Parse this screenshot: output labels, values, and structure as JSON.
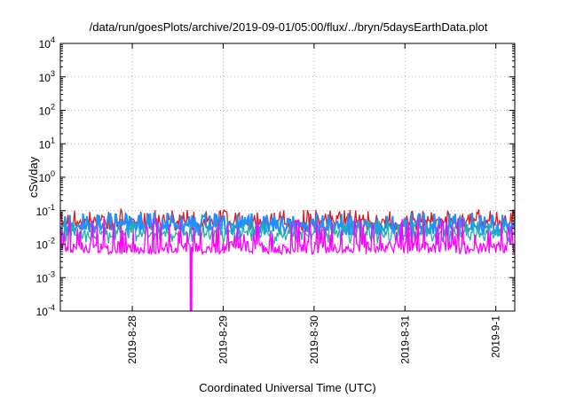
{
  "chart_data": {
    "type": "line",
    "title": "/data/run/goesPlots/archive/2019-09-01/05:00/flux/../bryn/5daysEarthData.plot",
    "xlabel": "Coordinated Universal Time (UTC)",
    "ylabel": "cSv/day",
    "yscale": "log",
    "ylim": [
      0.0001,
      10000
    ],
    "xlim": [
      "2019-08-27 05:00",
      "2019-09-01 05:00"
    ],
    "grid": true,
    "x_ticks": [
      {
        "label": "2019-8-28",
        "at": "2019-08-28 00:00"
      },
      {
        "label": "2019-8-29",
        "at": "2019-08-29 00:00"
      },
      {
        "label": "2019-8-30",
        "at": "2019-08-30 00:00"
      },
      {
        "label": "2019-8-31",
        "at": "2019-08-31 00:00"
      },
      {
        "label": "2019-9-1",
        "at": "2019-09-01 00:00"
      }
    ],
    "y_ticks": [
      {
        "base": "10",
        "exp": "-4",
        "value": 0.0001
      },
      {
        "base": "10",
        "exp": "-3",
        "value": 0.001
      },
      {
        "base": "10",
        "exp": "-2",
        "value": 0.01
      },
      {
        "base": "10",
        "exp": "-1",
        "value": 0.1
      },
      {
        "base": "10",
        "exp": "0",
        "value": 1
      },
      {
        "base": "10",
        "exp": "1",
        "value": 10
      },
      {
        "base": "10",
        "exp": "2",
        "value": 100
      },
      {
        "base": "10",
        "exp": "3",
        "value": 1000
      },
      {
        "base": "10",
        "exp": "4",
        "value": 10000
      }
    ],
    "series": [
      {
        "color": "#e41a1c",
        "typical": 0.045,
        "low": 0.025,
        "high": 0.11
      },
      {
        "color": "#1e90ff",
        "typical": 0.035,
        "low": 0.018,
        "high": 0.09
      },
      {
        "color": "#20b2aa",
        "typical": 0.02,
        "low": 0.01,
        "high": 0.05
      },
      {
        "color": "#ff00ff",
        "typical": 0.008,
        "low": 0.005,
        "high": 0.06,
        "min_value": 0.0001,
        "min_at": "2019-08-28 15:30"
      }
    ]
  }
}
